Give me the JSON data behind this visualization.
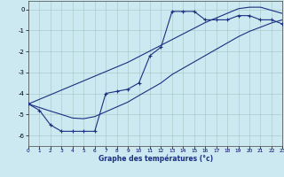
{
  "background_color": "#cce8f0",
  "line_color": "#1a3080",
  "grid_color": "#aacccc",
  "xlim": [
    0,
    23
  ],
  "ylim": [
    -6.5,
    0.4
  ],
  "xticks": [
    0,
    1,
    2,
    3,
    4,
    5,
    6,
    7,
    8,
    9,
    10,
    11,
    12,
    13,
    14,
    15,
    16,
    17,
    18,
    19,
    20,
    21,
    22,
    23
  ],
  "yticks": [
    0,
    -1,
    -2,
    -3,
    -4,
    -5,
    -6
  ],
  "xlabel": "Graphe des températures (°c)",
  "hours": [
    0,
    1,
    2,
    3,
    4,
    5,
    6,
    7,
    8,
    9,
    10,
    11,
    12,
    13,
    14,
    15,
    16,
    17,
    18,
    19,
    20,
    21,
    22,
    23
  ],
  "temp_actual": [
    -4.5,
    -4.8,
    -5.5,
    -5.8,
    -5.8,
    -5.8,
    -5.8,
    -4.0,
    -3.9,
    -3.8,
    -3.5,
    -2.2,
    -1.8,
    -0.1,
    -0.1,
    -0.1,
    -0.5,
    -0.5,
    -0.5,
    -0.3,
    -0.3,
    -0.5,
    -0.5,
    -0.7
  ],
  "temp_line1": [
    -4.5,
    -4.28,
    -4.06,
    -3.84,
    -3.62,
    -3.4,
    -3.18,
    -2.96,
    -2.74,
    -2.52,
    -2.25,
    -1.98,
    -1.71,
    -1.44,
    -1.17,
    -0.9,
    -0.63,
    -0.41,
    -0.19,
    0.03,
    0.1,
    0.1,
    -0.05,
    -0.2
  ],
  "temp_line2": [
    -4.5,
    -4.67,
    -4.84,
    -5.0,
    -5.17,
    -5.2,
    -5.1,
    -4.87,
    -4.64,
    -4.41,
    -4.1,
    -3.8,
    -3.5,
    -3.1,
    -2.8,
    -2.5,
    -2.2,
    -1.9,
    -1.6,
    -1.3,
    -1.05,
    -0.85,
    -0.65,
    -0.5
  ]
}
